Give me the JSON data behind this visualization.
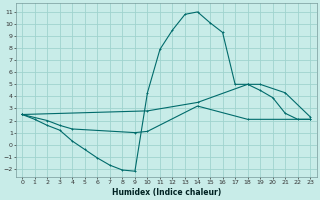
{
  "xlabel": "Humidex (Indice chaleur)",
  "background_color": "#c8ece8",
  "grid_color": "#a0d4ce",
  "line_color": "#006b6b",
  "xlim": [
    -0.5,
    23.5
  ],
  "ylim": [
    -2.7,
    11.7
  ],
  "xticks": [
    0,
    1,
    2,
    3,
    4,
    5,
    6,
    7,
    8,
    9,
    10,
    11,
    12,
    13,
    14,
    15,
    16,
    17,
    18,
    19,
    20,
    21,
    22,
    23
  ],
  "yticks": [
    -2,
    -1,
    0,
    1,
    2,
    3,
    4,
    5,
    6,
    7,
    8,
    9,
    10,
    11
  ],
  "line1_x": [
    0,
    1,
    2,
    3,
    4,
    5,
    6,
    7,
    8,
    9,
    10,
    11,
    12,
    13,
    14,
    15,
    16,
    17,
    18,
    19,
    20,
    21,
    22,
    23
  ],
  "line1_y": [
    2.5,
    2.1,
    1.6,
    1.2,
    0.3,
    -0.4,
    -1.1,
    -1.7,
    -2.1,
    -2.2,
    4.3,
    7.9,
    9.5,
    10.8,
    11.0,
    10.1,
    9.3,
    5.0,
    5.0,
    4.5,
    3.9,
    2.6,
    2.1,
    2.1
  ],
  "line2_x": [
    0,
    10,
    14,
    18,
    19,
    21,
    23
  ],
  "line2_y": [
    2.5,
    2.8,
    3.5,
    5.0,
    5.0,
    4.3,
    2.3
  ],
  "line3_x": [
    0,
    2,
    3,
    4,
    9,
    10,
    14,
    18,
    23
  ],
  "line3_y": [
    2.5,
    2.0,
    1.6,
    1.3,
    1.0,
    1.1,
    3.2,
    2.1,
    2.1
  ]
}
